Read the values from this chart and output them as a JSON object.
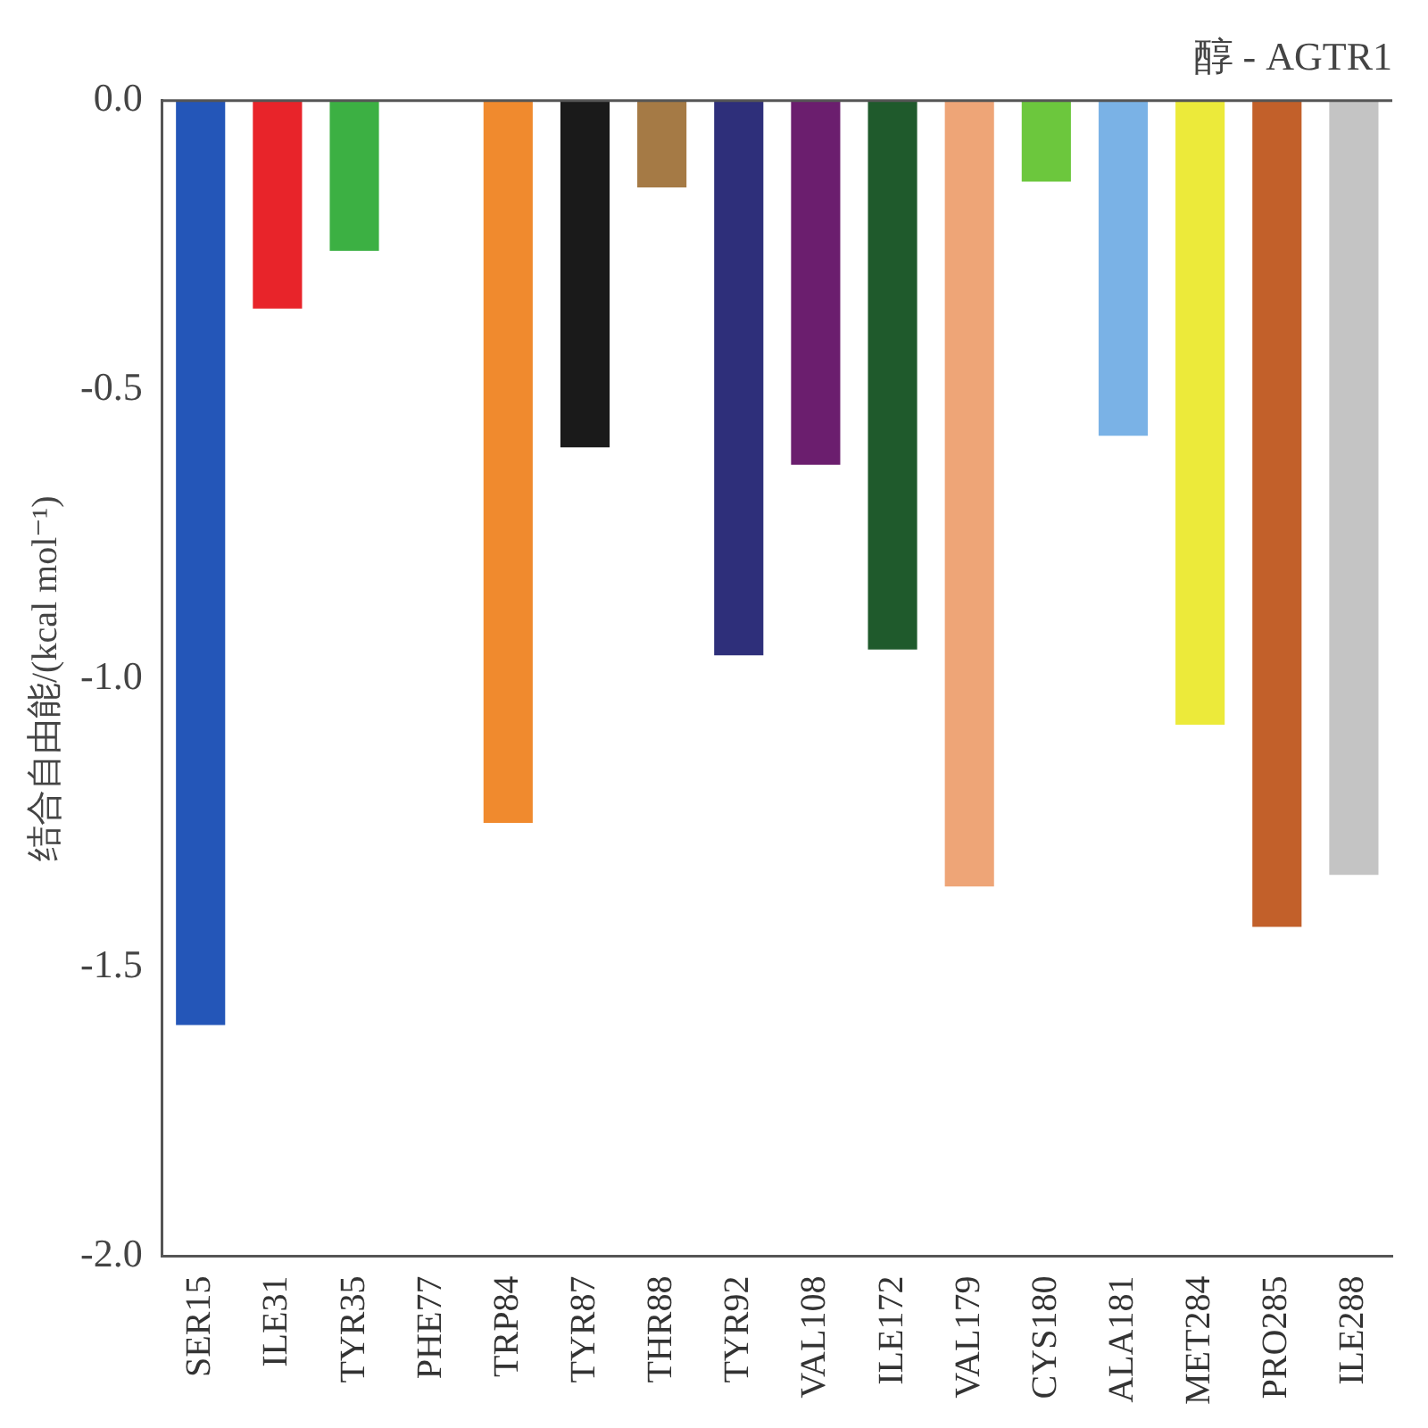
{
  "chart_data": {
    "type": "bar",
    "title": "醇 - AGTR1",
    "ylabel": "结合自由能/(kcal mol⁻¹)",
    "categories": [
      "SER15",
      "ILE31",
      "TYR35",
      "PHE77",
      "TRP84",
      "TYR87",
      "THR88",
      "TYR92",
      "VAL108",
      "ILE172",
      "VAL179",
      "CYS180",
      "ALA181",
      "MET284",
      "PRO285",
      "ILE288"
    ],
    "values": [
      -1.6,
      -0.36,
      -0.26,
      null,
      -1.25,
      -0.6,
      -0.15,
      -0.96,
      -0.63,
      -0.95,
      -1.36,
      -0.14,
      -0.58,
      -1.08,
      -1.43,
      -1.34
    ],
    "colors": [
      "#2456b8",
      "#e8242a",
      "#3cb043",
      "#888888",
      "#f08a2e",
      "#1a1a1a",
      "#a57a45",
      "#2e2f7a",
      "#6b1e6e",
      "#1f5a2c",
      "#eea577",
      "#6cc73d",
      "#7ab2e6",
      "#ecea3a",
      "#c2602a",
      "#c4c4c4"
    ],
    "ylim": [
      -2.0,
      0.0
    ],
    "yticks": [
      {
        "value": -2,
        "label": "-2.0"
      },
      {
        "value": -1.5,
        "label": "-1.5"
      },
      {
        "value": -1,
        "label": "-1.0"
      },
      {
        "value": -0.5,
        "label": "-0.5"
      },
      {
        "value": 0,
        "label": "0.0"
      }
    ],
    "grid": false,
    "legend": false
  }
}
